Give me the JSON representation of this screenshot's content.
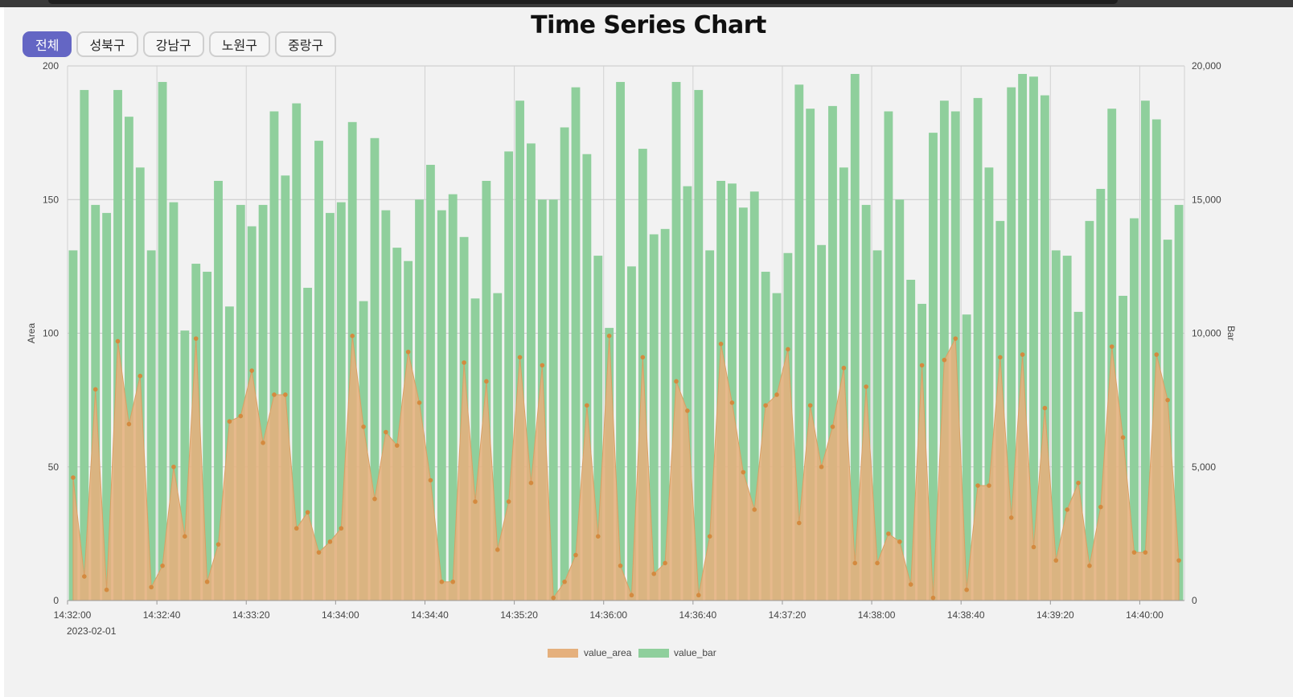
{
  "title": "Time Series Chart",
  "tabs": [
    {
      "label": "전체",
      "active": true
    },
    {
      "label": "성북구",
      "active": false
    },
    {
      "label": "강남구",
      "active": false
    },
    {
      "label": "노원구",
      "active": false
    },
    {
      "label": "중랑구",
      "active": false
    }
  ],
  "colors": {
    "area": "#e5b07d",
    "bar": "#8fcf9c",
    "area_point": "#d48a3f",
    "tab_active": "#6466c4"
  },
  "chart_data": {
    "type": "bar",
    "title": "Time Series Chart",
    "date_label": "2023-02-01",
    "x_start": "14:32:00",
    "x_step_seconds": 5,
    "x_ticks": [
      "14:32:00",
      "14:32:40",
      "14:33:20",
      "14:34:00",
      "14:34:40",
      "14:35:20",
      "14:36:00",
      "14:36:40",
      "14:37:20",
      "14:38:00",
      "14:38:40",
      "14:39:20",
      "14:40:00"
    ],
    "y_left": {
      "label": "Area",
      "range": [
        0,
        200
      ],
      "ticks": [
        "0",
        "50",
        "100",
        "150",
        "200"
      ]
    },
    "y_right": {
      "label": "Bar",
      "range": [
        0,
        20000
      ],
      "ticks": [
        "0",
        "5,000",
        "10,000",
        "15,000",
        "20,000"
      ]
    },
    "grid": true,
    "legend": {
      "placement": "bottom-center",
      "items": [
        "value_area",
        "value_bar"
      ]
    },
    "series": [
      {
        "name": "value_bar",
        "type": "bar",
        "axis": "right",
        "values": [
          13100,
          19100,
          14800,
          14500,
          19100,
          18100,
          16200,
          13100,
          19400,
          14900,
          10100,
          12600,
          12300,
          15700,
          11000,
          14800,
          14000,
          14800,
          18300,
          15900,
          18600,
          11700,
          17200,
          14500,
          14900,
          17900,
          11200,
          17300,
          14600,
          13200,
          12700,
          15000,
          16300,
          14600,
          15200,
          13600,
          11300,
          15700,
          11500,
          16800,
          18700,
          17100,
          15000,
          15000,
          17700,
          19200,
          16700,
          12900,
          10200,
          19400,
          12500,
          16900,
          13700,
          13900,
          19400,
          15500,
          19100,
          13100,
          15700,
          15600,
          14700,
          15300,
          12300,
          11500,
          13000,
          19300,
          18400,
          13300,
          18500,
          16200,
          19700,
          14800,
          13100,
          18300,
          15000,
          12000,
          11100,
          17500,
          18700,
          18300,
          10700,
          18800,
          16200,
          14200,
          19200,
          19700,
          19600,
          18900,
          13100,
          12900,
          10800,
          14200,
          15400,
          18400,
          11400,
          14300,
          18700,
          18000,
          13500,
          14800
        ]
      },
      {
        "name": "value_area",
        "type": "area",
        "axis": "left",
        "values": [
          46,
          9,
          79,
          4,
          97,
          66,
          84,
          5,
          13,
          50,
          24,
          98,
          7,
          21,
          67,
          69,
          86,
          59,
          77,
          77,
          27,
          33,
          18,
          22,
          27,
          99,
          65,
          38,
          63,
          58,
          93,
          74,
          45,
          7,
          7,
          89,
          37,
          82,
          19,
          37,
          91,
          44,
          88,
          1,
          7,
          17,
          73,
          24,
          99,
          13,
          2,
          91,
          10,
          14,
          82,
          71,
          2,
          24,
          96,
          74,
          48,
          34,
          73,
          77,
          94,
          29,
          73,
          50,
          65,
          87,
          14,
          80,
          14,
          25,
          22,
          6,
          88,
          1,
          90,
          98,
          4,
          43,
          43,
          91,
          31,
          92,
          20,
          72,
          15,
          34,
          44,
          13,
          35,
          95,
          61,
          18,
          18,
          92,
          75,
          15
        ]
      }
    ]
  }
}
